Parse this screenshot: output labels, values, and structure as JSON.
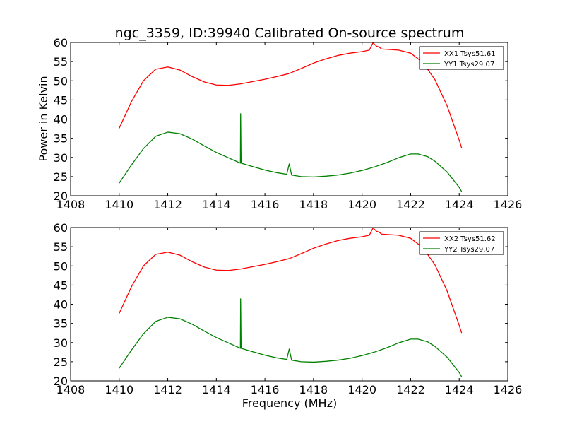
{
  "chart_data": {
    "type": "line",
    "title": "ngc_3359, ID:39940 Calibrated On-source spectrum",
    "ylabel": "Power in Kelvin",
    "xlabel": "Frequency (MHz)",
    "xlim": [
      1408,
      1426
    ],
    "ylim": [
      20,
      60
    ],
    "x_ticks": [
      "1408",
      "1410",
      "1412",
      "1414",
      "1416",
      "1418",
      "1420",
      "1422",
      "1424",
      "1426"
    ],
    "y_ticks": [
      "20",
      "25",
      "30",
      "35",
      "40",
      "45",
      "50",
      "55",
      "60"
    ],
    "legend_position": "top-right",
    "panels": [
      {
        "series": [
          {
            "name": "XX1 Tsys51.61",
            "color": "#ff0000",
            "points": [
              [
                1410,
                37.6
              ],
              [
                1410.5,
                44.5
              ],
              [
                1411,
                50
              ],
              [
                1411.5,
                53
              ],
              [
                1412,
                53.6
              ],
              [
                1412.5,
                52.8
              ],
              [
                1413,
                51.1
              ],
              [
                1413.5,
                49.7
              ],
              [
                1414,
                48.9
              ],
              [
                1414.5,
                48.8
              ],
              [
                1415,
                49.2
              ],
              [
                1415.5,
                49.8
              ],
              [
                1416,
                50.4
              ],
              [
                1416.5,
                51.1
              ],
              [
                1417,
                51.9
              ],
              [
                1417.5,
                53.2
              ],
              [
                1418,
                54.6
              ],
              [
                1418.5,
                55.7
              ],
              [
                1419,
                56.6
              ],
              [
                1419.5,
                57.2
              ],
              [
                1420,
                57.6
              ],
              [
                1420.3,
                58
              ],
              [
                1420.45,
                59.9
              ],
              [
                1420.6,
                59
              ],
              [
                1420.7,
                58.8
              ],
              [
                1420.8,
                58.3
              ],
              [
                1421,
                58.2
              ],
              [
                1421.5,
                58
              ],
              [
                1422,
                57.2
              ],
              [
                1422.5,
                54.8
              ],
              [
                1423,
                50.3
              ],
              [
                1423.5,
                43.5
              ],
              [
                1424,
                34.5
              ],
              [
                1424.1,
                32.5
              ]
            ]
          },
          {
            "name": "YY1 Tsys29.07",
            "color": "#008000",
            "points": [
              [
                1410,
                23.3
              ],
              [
                1410.5,
                28
              ],
              [
                1411,
                32.3
              ],
              [
                1411.5,
                35.5
              ],
              [
                1412,
                36.6
              ],
              [
                1412.5,
                36.2
              ],
              [
                1413,
                34.8
              ],
              [
                1413.5,
                33
              ],
              [
                1414,
                31.3
              ],
              [
                1414.5,
                29.9
              ],
              [
                1414.99,
                28.5
              ],
              [
                1415,
                41.4
              ],
              [
                1415.02,
                28.5
              ],
              [
                1415.5,
                27.6
              ],
              [
                1416,
                26.7
              ],
              [
                1416.5,
                26
              ],
              [
                1416.9,
                25.6
              ],
              [
                1417,
                28.3
              ],
              [
                1417.1,
                25.4
              ],
              [
                1417.5,
                25
              ],
              [
                1418,
                24.9
              ],
              [
                1418.5,
                25.1
              ],
              [
                1419,
                25.4
              ],
              [
                1419.5,
                25.9
              ],
              [
                1420,
                26.6
              ],
              [
                1420.5,
                27.5
              ],
              [
                1421,
                28.6
              ],
              [
                1421.5,
                29.9
              ],
              [
                1422,
                30.9
              ],
              [
                1422.3,
                30.9
              ],
              [
                1422.7,
                30.2
              ],
              [
                1423,
                29
              ],
              [
                1423.5,
                26.2
              ],
              [
                1424,
                22.2
              ],
              [
                1424.1,
                21.1
              ]
            ]
          }
        ]
      },
      {
        "series": [
          {
            "name": "XX2 Tsys51.62",
            "color": "#ff0000",
            "points": [
              [
                1410,
                37.6
              ],
              [
                1410.5,
                44.5
              ],
              [
                1411,
                50
              ],
              [
                1411.5,
                53
              ],
              [
                1412,
                53.6
              ],
              [
                1412.5,
                52.8
              ],
              [
                1413,
                51.1
              ],
              [
                1413.5,
                49.7
              ],
              [
                1414,
                48.9
              ],
              [
                1414.5,
                48.8
              ],
              [
                1415,
                49.2
              ],
              [
                1415.5,
                49.8
              ],
              [
                1416,
                50.4
              ],
              [
                1416.5,
                51.1
              ],
              [
                1417,
                51.9
              ],
              [
                1417.5,
                53.2
              ],
              [
                1418,
                54.6
              ],
              [
                1418.5,
                55.7
              ],
              [
                1419,
                56.6
              ],
              [
                1419.5,
                57.2
              ],
              [
                1420,
                57.6
              ],
              [
                1420.3,
                58
              ],
              [
                1420.45,
                59.9
              ],
              [
                1420.6,
                59
              ],
              [
                1420.7,
                58.8
              ],
              [
                1420.8,
                58.3
              ],
              [
                1421,
                58.2
              ],
              [
                1421.5,
                58
              ],
              [
                1422,
                57.2
              ],
              [
                1422.5,
                54.8
              ],
              [
                1423,
                50.3
              ],
              [
                1423.5,
                43.5
              ],
              [
                1424,
                34.5
              ],
              [
                1424.1,
                32.5
              ]
            ]
          },
          {
            "name": "YY2 Tsys29.07",
            "color": "#008000",
            "points": [
              [
                1410,
                23.3
              ],
              [
                1410.5,
                28
              ],
              [
                1411,
                32.3
              ],
              [
                1411.5,
                35.5
              ],
              [
                1412,
                36.6
              ],
              [
                1412.5,
                36.2
              ],
              [
                1413,
                34.8
              ],
              [
                1413.5,
                33
              ],
              [
                1414,
                31.3
              ],
              [
                1414.5,
                29.9
              ],
              [
                1414.99,
                28.5
              ],
              [
                1415,
                41.4
              ],
              [
                1415.02,
                28.5
              ],
              [
                1415.5,
                27.6
              ],
              [
                1416,
                26.7
              ],
              [
                1416.5,
                26
              ],
              [
                1416.9,
                25.6
              ],
              [
                1417,
                28.3
              ],
              [
                1417.1,
                25.4
              ],
              [
                1417.5,
                25
              ],
              [
                1418,
                24.9
              ],
              [
                1418.5,
                25.1
              ],
              [
                1419,
                25.4
              ],
              [
                1419.5,
                25.9
              ],
              [
                1420,
                26.6
              ],
              [
                1420.5,
                27.5
              ],
              [
                1421,
                28.6
              ],
              [
                1421.5,
                29.9
              ],
              [
                1422,
                30.9
              ],
              [
                1422.3,
                30.9
              ],
              [
                1422.7,
                30.2
              ],
              [
                1423,
                29
              ],
              [
                1423.5,
                26.2
              ],
              [
                1424,
                22.2
              ],
              [
                1424.1,
                21.1
              ]
            ]
          }
        ]
      }
    ]
  }
}
